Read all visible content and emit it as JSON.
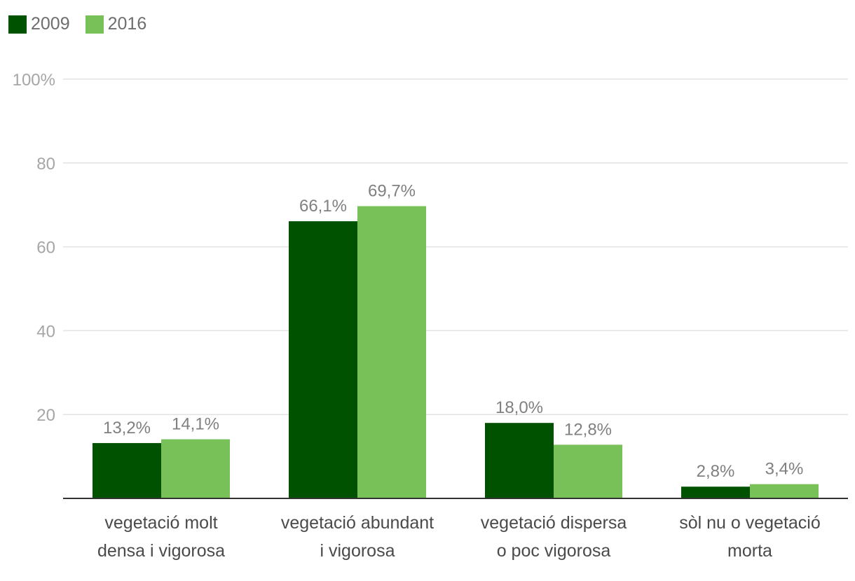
{
  "chart_data": {
    "type": "bar",
    "title": "",
    "xlabel": "",
    "ylabel": "",
    "categories": [
      [
        "vegetació molt",
        "densa i vigorosa"
      ],
      [
        "vegetació abundant",
        "i vigorosa"
      ],
      [
        "vegetació dispersa",
        "o poc vigorosa"
      ],
      [
        "sòl nu o vegetació",
        "morta"
      ]
    ],
    "series": [
      {
        "name": "2009",
        "color": "#005200",
        "values": [
          13.2,
          66.1,
          18.0,
          2.8
        ],
        "labels": [
          "13,2%",
          "66,1%",
          "18,0%",
          "2,8%"
        ]
      },
      {
        "name": "2016",
        "color": "#78c159",
        "values": [
          14.1,
          69.7,
          12.8,
          3.4
        ],
        "labels": [
          "14,1%",
          "69,7%",
          "12,8%",
          "3,4%"
        ]
      }
    ],
    "ylim": [
      0,
      100
    ],
    "yticks": [
      20,
      40,
      60,
      80,
      100
    ],
    "ytick_labels": [
      "20",
      "40",
      "60",
      "80",
      "100%"
    ],
    "grid": true,
    "legend_position": "top-left"
  }
}
